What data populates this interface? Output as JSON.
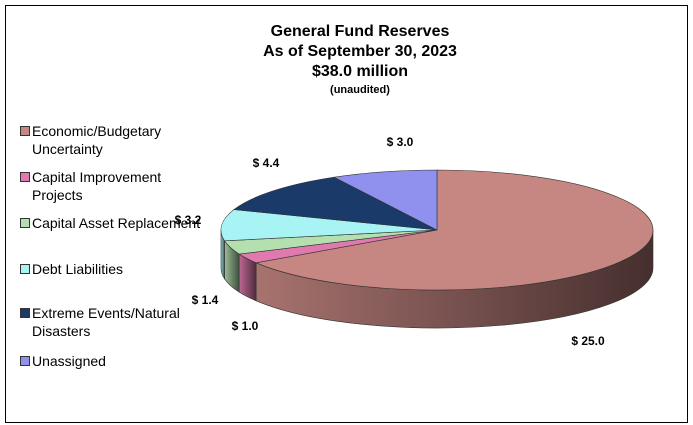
{
  "chart_data": {
    "type": "pie",
    "title": "General Fund Reserves",
    "subtitle_lines": [
      "As of September 30, 2023",
      "$38.0 million",
      "(unaudited)"
    ],
    "legend_placement": "left",
    "slices": [
      {
        "label": "Economic/Budgetary Uncertainty",
        "value": 25.0,
        "value_label": "$ 25.0",
        "color": "#C68783"
      },
      {
        "label": "Capital Improvement Projects",
        "value": 1.0,
        "value_label": "$ 1.0",
        "color": "#E07AAE"
      },
      {
        "label": "Capital Asset Replacement",
        "value": 1.4,
        "value_label": "$ 1.4",
        "color": "#B4E0B0"
      },
      {
        "label": "Debt Liabilities",
        "value": 3.2,
        "value_label": "$ 3.2",
        "color": "#A8F4F4"
      },
      {
        "label": "Extreme Events/Natural Disasters",
        "value": 4.4,
        "value_label": "$ 4.4",
        "color": "#1A3A6A"
      },
      {
        "label": "Unassigned",
        "value": 3.0,
        "value_label": "$ 3.0",
        "color": "#9090EE"
      }
    ]
  }
}
